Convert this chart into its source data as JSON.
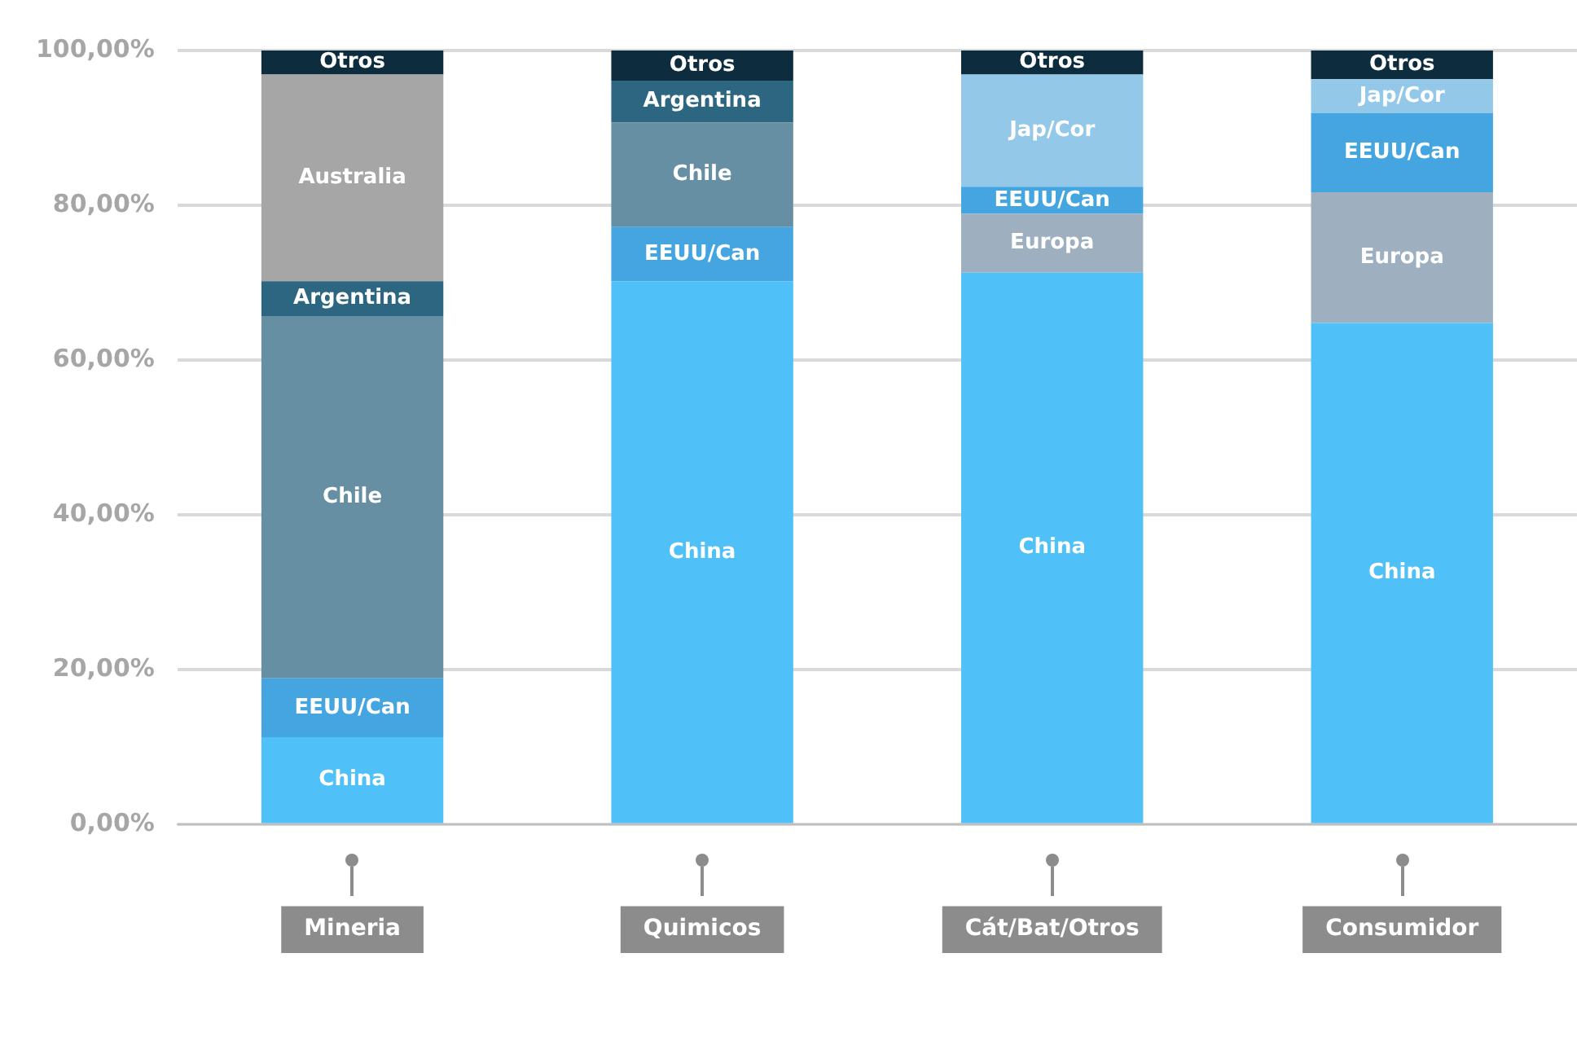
{
  "chart_data": {
    "type": "bar",
    "stacked": true,
    "categories": [
      "Mineria",
      "Quimicos",
      "Cát/Bat/Otros",
      "Consumidor"
    ],
    "series": [
      {
        "name": "China",
        "color": "#4fc1f8",
        "values": [
          11.3,
          70.2,
          71.3,
          64.8
        ]
      },
      {
        "name": "Europa",
        "color": "#9eb0bf",
        "values": [
          null,
          null,
          7.6,
          16.9
        ]
      },
      {
        "name": "EEUU/Can",
        "color": "#45a5e0",
        "values": [
          7.6,
          7.0,
          3.5,
          10.2
        ]
      },
      {
        "name": "Chile",
        "color": "#668fa3",
        "values": [
          46.8,
          13.5,
          null,
          null
        ]
      },
      {
        "name": "Argentina",
        "color": "#2d6680",
        "values": [
          4.5,
          5.4,
          null,
          null
        ]
      },
      {
        "name": "Australia",
        "color": "#a6a6a6",
        "values": [
          26.7,
          null,
          null,
          null
        ]
      },
      {
        "name": "Jap/Cor",
        "color": "#93c8e8",
        "values": [
          null,
          null,
          14.5,
          4.4
        ]
      },
      {
        "name": "Otros",
        "color": "#0d2d3e",
        "values": [
          3.1,
          3.9,
          3.1,
          3.7
        ]
      }
    ],
    "ylim": [
      0,
      100
    ],
    "yticks": [
      {
        "value": 0,
        "label": "0,00%"
      },
      {
        "value": 20,
        "label": "20,00%"
      },
      {
        "value": 40,
        "label": "40,00%"
      },
      {
        "value": 60,
        "label": "60,00%"
      },
      {
        "value": 80,
        "label": "80,00%"
      },
      {
        "value": 100,
        "label": "100,00%"
      }
    ],
    "grid": "y",
    "legend": false
  }
}
